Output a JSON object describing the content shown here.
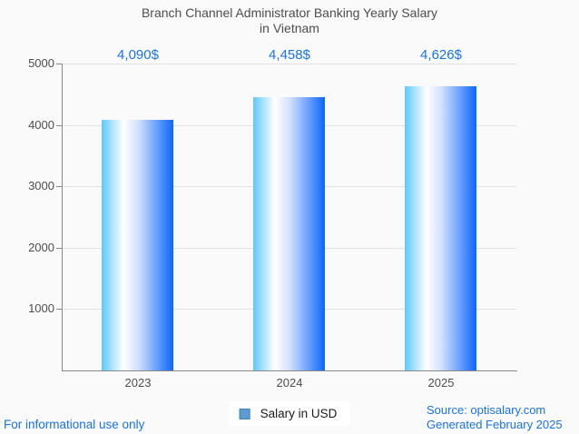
{
  "title": {
    "line1": "Branch Channel Administrator Banking Yearly Salary",
    "line2": "in Vietnam"
  },
  "chart_data": {
    "type": "bar",
    "categories": [
      "2023",
      "2024",
      "2025"
    ],
    "values": [
      4090,
      4458,
      4626
    ],
    "value_labels": [
      "4,090$",
      "4,458$",
      "4,626$"
    ],
    "series_name": "Salary in USD",
    "xlabel": "",
    "ylabel": "",
    "ylim": [
      0,
      5000
    ],
    "yticks": [
      1000,
      2000,
      3000,
      4000,
      5000
    ],
    "grid": true,
    "legend_position": "bottom-center",
    "bar_gradient": {
      "direction": "90deg",
      "colors": [
        "#5ec8fb",
        "#ffffff",
        "#cfdffc",
        "#0d66fb"
      ],
      "stops": [
        "0%",
        "30%",
        "52%",
        "100%"
      ]
    }
  },
  "legend": {
    "label": "Salary in USD",
    "swatch_fill": "#5c9bd3",
    "swatch_border": "#4a80b8"
  },
  "footer": {
    "disclaimer": "For informational use only",
    "source": "Source: optisalary.com",
    "generated": "Generated February 2025"
  },
  "colors": {
    "accent_blue": "#1a73e8",
    "title_text": "#4d4d4d",
    "axis_text": "#4d4d4d",
    "axis_line": "#8a8a8a",
    "grid_line": "#e2e2e2",
    "background": "#fafafa",
    "legend_bg": "#ffffff"
  }
}
